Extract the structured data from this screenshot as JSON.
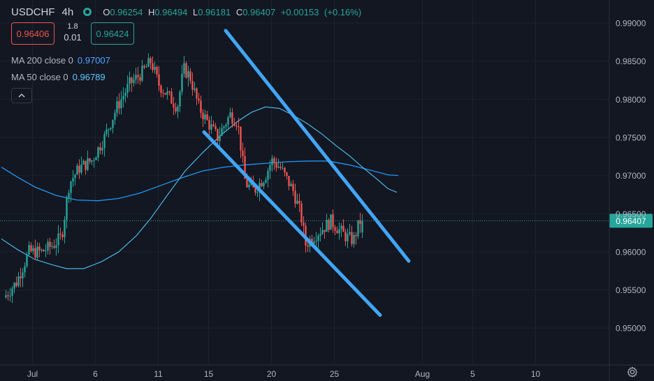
{
  "legend": {
    "symbol": "USDCHF",
    "timeframe": "4h",
    "ohlc": [
      {
        "k": "O",
        "v": "0.96254"
      },
      {
        "k": "H",
        "v": "0.96494"
      },
      {
        "k": "L",
        "v": "0.96181"
      },
      {
        "k": "C",
        "v": "0.96407"
      },
      {
        "k": "",
        "v": "+0.00153"
      },
      {
        "k": "",
        "v": "(+0.16%)"
      }
    ]
  },
  "trade": {
    "sell": "0.96406",
    "spread_top": "1.8",
    "spread_bottom": "0.01",
    "buy": "0.96424"
  },
  "indicators": {
    "ma200": {
      "label": "MA 200 close 0",
      "value": "0.97007"
    },
    "ma50": {
      "label": "MA 50 close 0",
      "value": "0.96789"
    }
  },
  "colors": {
    "background": "#131722",
    "up": "#26a69a",
    "down": "#ef5350",
    "ma200": "#2196f3",
    "ma50": "#4fc3f7",
    "channel": "#42a5f5",
    "grid": "#1e222d",
    "last_price": "#26a69a"
  },
  "icons": [
    "eye-icon",
    "chevron-up-icon",
    "gear-icon"
  ],
  "chart_data": {
    "type": "candlestick",
    "symbol": "USDCHF",
    "timeframe": "4h",
    "price_axis_ticks": [
      "0.99000",
      "0.98500",
      "0.98000",
      "0.97500",
      "0.97000",
      "0.96500",
      "0.96000",
      "0.95500",
      "0.95000"
    ],
    "last_price_label": "0.96407",
    "x_axis_ticks": [
      "Jul",
      "6",
      "11",
      "15",
      "20",
      "25",
      "Aug",
      "5",
      "10"
    ],
    "ylim": [
      0.9444,
      0.9913
    ],
    "grid": true,
    "trend_channel": {
      "upper": [
        [
          "Jul 14 12:00",
          0.989
        ],
        [
          "Jul 29 08:00",
          0.9588
        ]
      ],
      "lower": [
        [
          "Jul 13 20:00",
          0.9757
        ],
        [
          "Jul 26 08:00",
          0.9517
        ]
      ]
    },
    "ma200_path": [
      [
        2,
        0.9711
      ],
      [
        25,
        0.9698
      ],
      [
        50,
        0.9685
      ],
      [
        80,
        0.9674
      ],
      [
        110,
        0.9668
      ],
      [
        140,
        0.9667
      ],
      [
        170,
        0.967
      ],
      [
        200,
        0.9677
      ],
      [
        230,
        0.9687
      ],
      [
        260,
        0.9697
      ],
      [
        290,
        0.9706
      ],
      [
        320,
        0.9711
      ],
      [
        350,
        0.9714
      ],
      [
        380,
        0.9716
      ],
      [
        410,
        0.9718
      ],
      [
        440,
        0.9719
      ],
      [
        470,
        0.9719
      ],
      [
        500,
        0.9714
      ],
      [
        530,
        0.9707
      ],
      [
        555,
        0.9701
      ],
      [
        570,
        0.97
      ]
    ],
    "ma50_path": [
      [
        2,
        0.9617
      ],
      [
        25,
        0.9603
      ],
      [
        50,
        0.959
      ],
      [
        75,
        0.9583
      ],
      [
        95,
        0.9578
      ],
      [
        120,
        0.9578
      ],
      [
        145,
        0.9587
      ],
      [
        170,
        0.96
      ],
      [
        195,
        0.9621
      ],
      [
        215,
        0.9643
      ],
      [
        240,
        0.9675
      ],
      [
        265,
        0.9706
      ],
      [
        290,
        0.973
      ],
      [
        315,
        0.9752
      ],
      [
        340,
        0.9771
      ],
      [
        360,
        0.9783
      ],
      [
        380,
        0.979
      ],
      [
        400,
        0.9788
      ],
      [
        420,
        0.9779
      ],
      [
        440,
        0.9768
      ],
      [
        460,
        0.9755
      ],
      [
        480,
        0.974
      ],
      [
        500,
        0.9726
      ],
      [
        520,
        0.971
      ],
      [
        540,
        0.9695
      ],
      [
        555,
        0.9683
      ],
      [
        568,
        0.9678
      ]
    ],
    "candles": []
  }
}
